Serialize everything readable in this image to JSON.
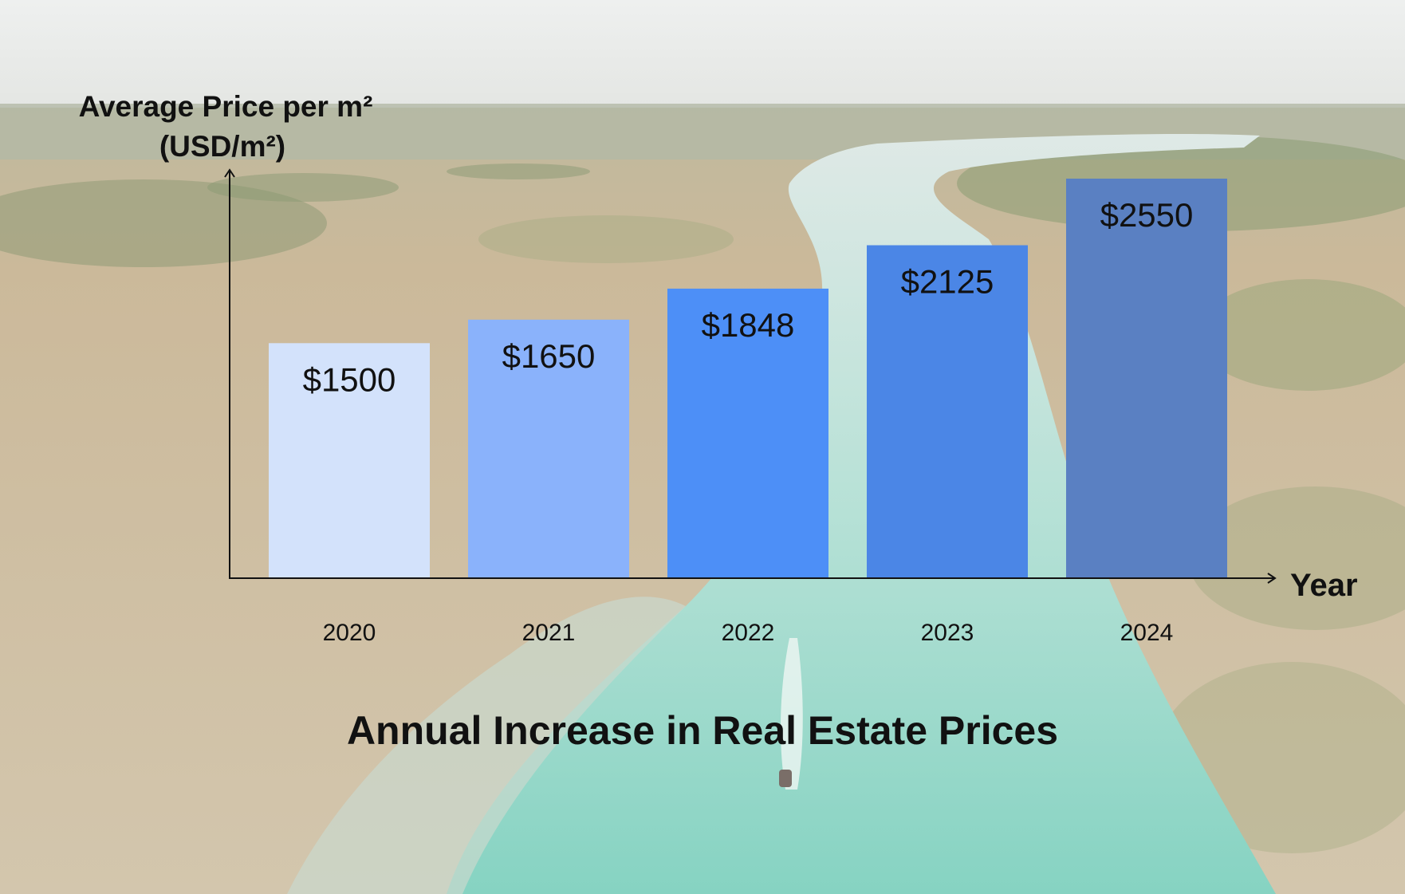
{
  "background": {
    "description_icon": "aerial-lagoon-photo",
    "sky_color": "#f2f3f2",
    "land_color": "#c9b89a",
    "vegetation_color": "#9aa77f",
    "water_color": "#a8dccf",
    "water_deep_color": "#7fd2c0"
  },
  "chart_data": {
    "type": "bar",
    "title": "Annual Increase in Real Estate Prices",
    "xlabel": "Year",
    "ylabel_line1": "Average Price per m²",
    "ylabel_line2": "(USD/m²)",
    "categories": [
      "2020",
      "2021",
      "2022",
      "2023",
      "2024"
    ],
    "values": [
      1500,
      1650,
      1848,
      2125,
      2550
    ],
    "value_labels": [
      "$1500",
      "$1650",
      "$1848",
      "$2125",
      "$2550"
    ],
    "colors": [
      "#d3e2fb",
      "#8ab2fb",
      "#4d8ff7",
      "#4b86e6",
      "#5a80c2"
    ],
    "ylim": [
      0,
      2550
    ],
    "grid": false,
    "legend": "none"
  }
}
